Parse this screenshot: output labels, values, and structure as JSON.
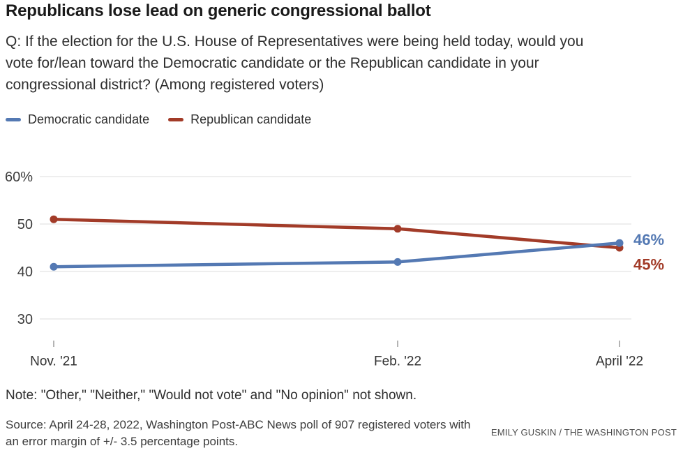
{
  "header": {
    "title": "Republicans lose lead on generic congressional ballot",
    "subtitle_lines": [
      "Q: If the election for the U.S. House of Representatives were being held today, would you",
      "vote for/lean toward the Democratic candidate or the Republican candidate in your",
      "congressional district? (Among registered voters)"
    ]
  },
  "legend": [
    {
      "label": "Democratic candidate",
      "color": "#5479b3"
    },
    {
      "label": "Republican candidate",
      "color": "#a23b28"
    }
  ],
  "chart_data": {
    "type": "line",
    "title": "Republicans lose lead on generic congressional ballot",
    "categories": [
      "Nov. '21",
      "Feb. '22",
      "April '22"
    ],
    "series": [
      {
        "name": "Republican candidate",
        "color": "#a23b28",
        "values": [
          51,
          49,
          45
        ],
        "end_label": "45%"
      },
      {
        "name": "Democratic candidate",
        "color": "#5479b3",
        "values": [
          41,
          42,
          46
        ],
        "end_label": "46%"
      }
    ],
    "yticks": {
      "labels": [
        "60%",
        "50",
        "40",
        "30"
      ],
      "values": [
        60,
        50,
        40,
        30
      ]
    },
    "ylim": [
      30,
      60
    ],
    "xlabel": "",
    "ylabel": "",
    "grid": true,
    "legend_position": "top-left",
    "unit": "percent of registered voters"
  },
  "footer": {
    "note": "Note: \"Other,\" \"Neither,\" \"Would not vote\" and \"No opinion\" not shown.",
    "source_lines": [
      "Source: April 24-28, 2022, Washington Post-ABC News poll of 907 registered voters with",
      "an error margin of +/- 3.5 percentage points."
    ],
    "credit": "EMILY GUSKIN / THE WASHINGTON POST"
  }
}
